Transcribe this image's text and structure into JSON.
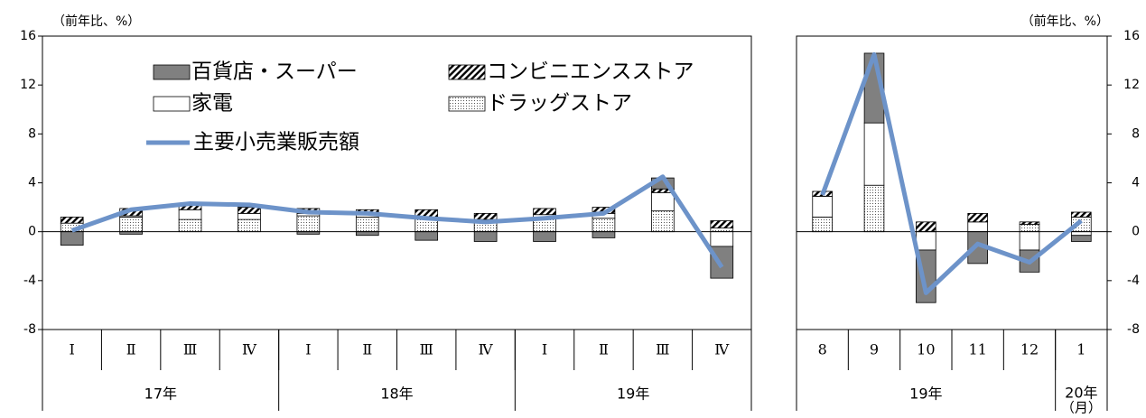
{
  "chart_data": [
    {
      "type": "bar",
      "unit_label": "（前年比、%）",
      "categories": [
        "Ⅰ",
        "Ⅱ",
        "Ⅲ",
        "Ⅳ",
        "Ⅰ",
        "Ⅱ",
        "Ⅲ",
        "Ⅳ",
        "Ⅰ",
        "Ⅱ",
        "Ⅲ",
        "Ⅳ"
      ],
      "groups": [
        "17年",
        null,
        null,
        null,
        "18年",
        null,
        null,
        null,
        "19年",
        null,
        null,
        null
      ],
      "ylim": [
        -8,
        16
      ],
      "yticks": [
        -8,
        -4,
        0,
        4,
        8,
        12,
        16
      ],
      "yaxis_side": "left",
      "series": [
        {
          "name": "百貨店・スーパー",
          "type": "bar",
          "color": "#808080",
          "pattern": "solid",
          "values": [
            -1.1,
            -0.2,
            0,
            0.2,
            -0.2,
            -0.3,
            -0.7,
            -0.8,
            -0.8,
            -0.5,
            0.9,
            -2.6
          ]
        },
        {
          "name": "コンビニエンスストア",
          "type": "bar",
          "color": "#000000",
          "pattern": "hatch",
          "values": [
            0.5,
            0.6,
            0.5,
            0.5,
            0.4,
            0.4,
            0.6,
            0.5,
            0.5,
            0.5,
            0.3,
            0.6
          ]
        },
        {
          "name": "家電",
          "type": "bar",
          "color": "#ffffff",
          "pattern": "solid",
          "values": [
            0,
            0.1,
            0.8,
            0.5,
            0.2,
            0.2,
            0,
            0.1,
            0.2,
            0.4,
            1.5,
            -1.2
          ]
        },
        {
          "name": "ドラッグストア",
          "type": "bar",
          "color": "#000000",
          "pattern": "dots",
          "values": [
            0.7,
            1.2,
            1.0,
            1.0,
            1.3,
            1.2,
            1.2,
            0.9,
            1.2,
            1.1,
            1.7,
            0.3
          ]
        },
        {
          "name": "主要小売業販売額",
          "type": "line",
          "color": "#6d93c9",
          "values": [
            0.1,
            1.8,
            2.3,
            2.2,
            1.6,
            1.5,
            1.1,
            0.8,
            1.1,
            1.5,
            4.5,
            -2.9
          ]
        }
      ]
    },
    {
      "type": "bar",
      "unit_label": "（前年比、%）",
      "x_unit_label": "（月）",
      "categories": [
        "8",
        "9",
        "10",
        "11",
        "12",
        "1"
      ],
      "groups": [
        "19年",
        null,
        null,
        null,
        null,
        "20年"
      ],
      "ylim": [
        -8,
        16
      ],
      "yticks": [
        -8,
        -4,
        0,
        4,
        8,
        12,
        16
      ],
      "yaxis_side": "right",
      "series": [
        {
          "type": "bar",
          "color": "#808080",
          "pattern": "solid",
          "values": [
            0,
            5.7,
            -4.3,
            -2.6,
            -1.8,
            -0.5
          ]
        },
        {
          "type": "bar",
          "color": "#000000",
          "pattern": "hatch",
          "values": [
            0.4,
            0,
            0.8,
            0.7,
            0.2,
            0.4
          ]
        },
        {
          "type": "bar",
          "color": "#ffffff",
          "pattern": "solid",
          "values": [
            1.7,
            5.1,
            -1.5,
            0.8,
            -1.5,
            -0.3
          ]
        },
        {
          "type": "bar",
          "color": "#000000",
          "pattern": "dots",
          "values": [
            1.2,
            3.8,
            0,
            0,
            0.6,
            1.2
          ]
        },
        {
          "type": "line",
          "color": "#6d93c9",
          "values": [
            3.0,
            14.5,
            -5.0,
            -1.0,
            -2.5,
            0.9
          ]
        }
      ]
    }
  ]
}
